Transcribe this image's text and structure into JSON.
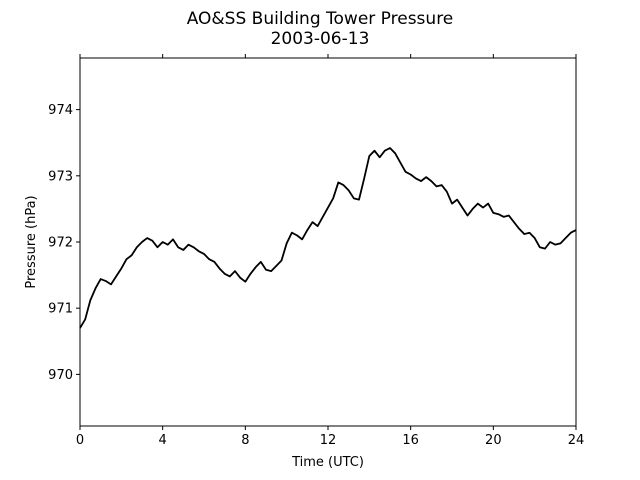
{
  "chart_data": {
    "type": "line",
    "title": "AO&SS Building Tower Pressure",
    "subtitle": "2003-06-13",
    "xlabel": "Time (UTC)",
    "ylabel": "Pressure (hPa)",
    "xlim": [
      0,
      24
    ],
    "ylim": [
      969.22,
      974.78
    ],
    "xticks": [
      0,
      4,
      8,
      12,
      16,
      20,
      24
    ],
    "yticks": [
      970,
      971,
      972,
      973,
      974
    ],
    "grid": false,
    "line_color": "#000000",
    "series": [
      {
        "x": [
          0.0,
          0.25,
          0.5,
          0.75,
          1.0,
          1.25,
          1.5,
          1.75,
          2.0,
          2.25,
          2.5,
          2.75,
          3.0,
          3.25,
          3.5,
          3.75,
          4.0,
          4.25,
          4.5,
          4.75,
          5.0,
          5.25,
          5.5,
          5.75,
          6.0,
          6.25,
          6.5,
          6.75,
          7.0,
          7.25,
          7.5,
          7.75,
          8.0,
          8.25,
          8.5,
          8.75,
          9.0,
          9.25,
          9.5,
          9.75,
          10.0,
          10.25,
          10.5,
          10.75,
          11.0,
          11.25,
          11.5,
          11.75,
          12.0,
          12.25,
          12.5,
          12.75,
          13.0,
          13.25,
          13.5,
          13.75,
          14.0,
          14.25,
          14.5,
          14.75,
          15.0,
          15.25,
          15.5,
          15.75,
          16.0,
          16.25,
          16.5,
          16.75,
          17.0,
          17.25,
          17.5,
          17.75,
          18.0,
          18.25,
          18.5,
          18.75,
          19.0,
          19.25,
          19.5,
          19.75,
          20.0,
          20.25,
          20.5,
          20.75,
          21.0,
          21.25,
          21.5,
          21.75,
          22.0,
          22.25,
          22.5,
          22.75,
          23.0,
          23.25,
          23.5,
          23.75,
          24.0
        ],
        "values": [
          970.7,
          970.83,
          971.12,
          971.3,
          971.44,
          971.41,
          971.36,
          971.48,
          971.6,
          971.74,
          971.8,
          971.92,
          972.0,
          972.06,
          972.02,
          971.92,
          972.0,
          971.96,
          972.04,
          971.92,
          971.88,
          971.96,
          971.92,
          971.86,
          971.82,
          971.74,
          971.7,
          971.6,
          971.52,
          971.48,
          971.56,
          971.46,
          971.4,
          971.52,
          971.62,
          971.7,
          971.58,
          971.56,
          971.64,
          971.72,
          971.98,
          972.14,
          972.1,
          972.04,
          972.18,
          972.3,
          972.24,
          972.38,
          972.52,
          972.66,
          972.9,
          972.86,
          972.78,
          972.66,
          972.64,
          972.96,
          973.3,
          973.38,
          973.28,
          973.38,
          973.42,
          973.34,
          973.2,
          973.06,
          973.02,
          972.96,
          972.92,
          972.98,
          972.92,
          972.84,
          972.86,
          972.76,
          972.58,
          972.64,
          972.52,
          972.4,
          972.5,
          972.58,
          972.52,
          972.58,
          972.44,
          972.42,
          972.38,
          972.4,
          972.3,
          972.2,
          972.12,
          972.14,
          972.06,
          971.92,
          971.9,
          972.0,
          971.96,
          971.98,
          972.06,
          972.14,
          972.18
        ]
      }
    ]
  }
}
